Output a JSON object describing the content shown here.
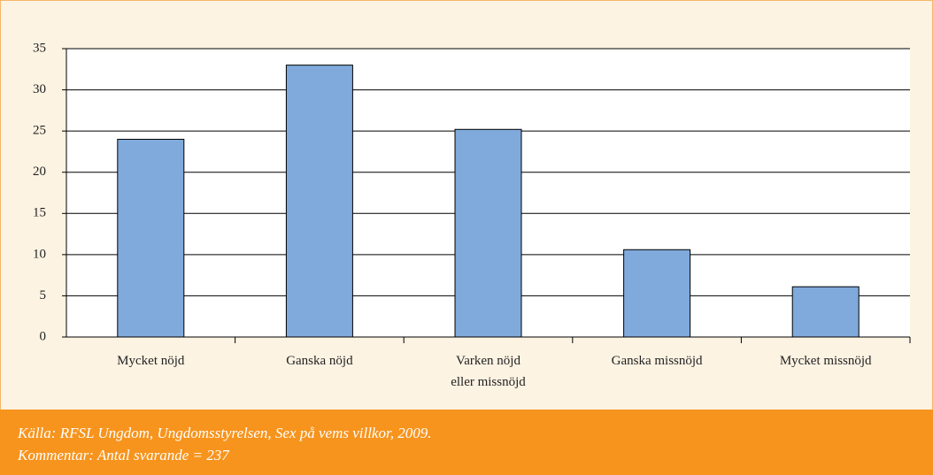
{
  "chart_data": {
    "type": "bar",
    "categories": [
      "Mycket nöjd",
      "Ganska nöjd",
      "Varken nöjd\neller missnöjd",
      "Ganska missnöjd",
      "Mycket missnöjd"
    ],
    "values": [
      24,
      33,
      25.2,
      10.6,
      6.1
    ],
    "color": "#7faadb",
    "ylim": [
      0,
      35
    ],
    "yticks": [
      0,
      5,
      10,
      15,
      20,
      25,
      30,
      35
    ],
    "grid": true,
    "source": "Källa: RFSL Ungdom, Ungdomsstyrelsen, Sex på vems villkor, 2009.",
    "note": "Kommentar: Antal svarande = 237"
  }
}
